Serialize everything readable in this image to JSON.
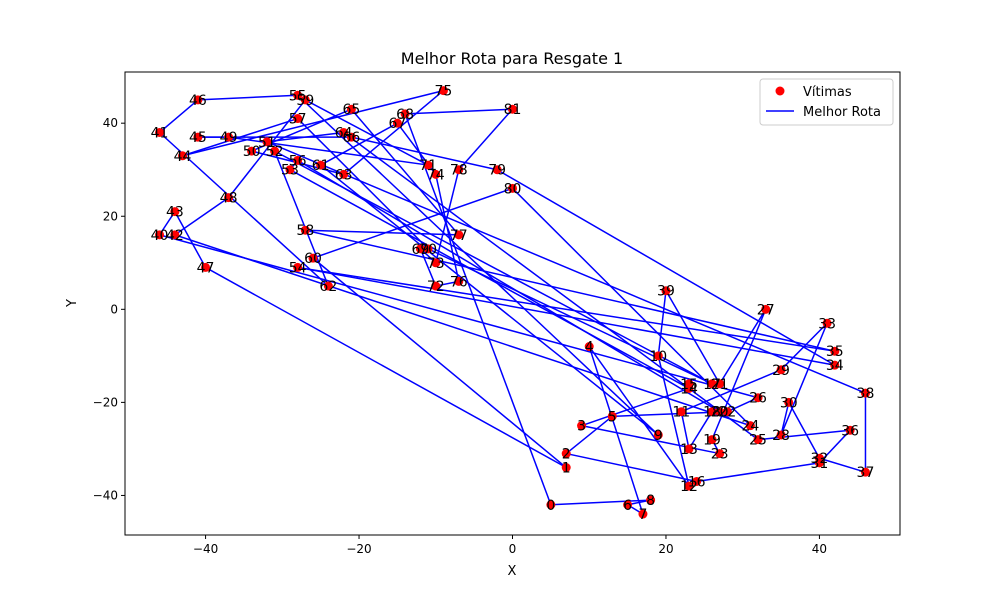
{
  "chart_data": {
    "type": "scatter",
    "title": "Melhor Rota para Resgate 1",
    "xlabel": "X",
    "ylabel": "Y",
    "xlim": [
      -50.5,
      50.5
    ],
    "ylim": [
      -48.5,
      51
    ],
    "xticks": [
      -40,
      -20,
      0,
      20,
      40
    ],
    "yticks": [
      -40,
      -20,
      0,
      20,
      40
    ],
    "grid": false,
    "legend_position": "top-right",
    "colors": {
      "points": "#ff0000",
      "route": "#0000ff",
      "labels": "#000000"
    },
    "series": [
      {
        "name": "Vítimas",
        "kind": "scatter"
      },
      {
        "name": "Melhor Rota",
        "kind": "line"
      }
    ],
    "points": [
      {
        "id": "0",
        "x": 5,
        "y": -42
      },
      {
        "id": "1",
        "x": 7,
        "y": -34
      },
      {
        "id": "2",
        "x": 7,
        "y": -31
      },
      {
        "id": "3",
        "x": 9,
        "y": -25
      },
      {
        "id": "4",
        "x": 10,
        "y": -8
      },
      {
        "id": "5",
        "x": 13,
        "y": -23
      },
      {
        "id": "6",
        "x": 15,
        "y": -42
      },
      {
        "id": "7",
        "x": 17,
        "y": -44
      },
      {
        "id": "8",
        "x": 18,
        "y": -41
      },
      {
        "id": "9",
        "x": 19,
        "y": -27
      },
      {
        "id": "10",
        "x": 19,
        "y": -10
      },
      {
        "id": "11",
        "x": 22,
        "y": -22
      },
      {
        "id": "12",
        "x": 23,
        "y": -38
      },
      {
        "id": "13",
        "x": 23,
        "y": -30
      },
      {
        "id": "14",
        "x": 23,
        "y": -17
      },
      {
        "id": "15",
        "x": 23,
        "y": -16
      },
      {
        "id": "16",
        "x": 24,
        "y": -37
      },
      {
        "id": "17",
        "x": 26,
        "y": -16
      },
      {
        "id": "18",
        "x": 26,
        "y": -22
      },
      {
        "id": "19",
        "x": 26,
        "y": -28
      },
      {
        "id": "20",
        "x": 27,
        "y": -22
      },
      {
        "id": "21",
        "x": 27,
        "y": -16
      },
      {
        "id": "22",
        "x": 28,
        "y": -22
      },
      {
        "id": "23",
        "x": 27,
        "y": -31
      },
      {
        "id": "24",
        "x": 31,
        "y": -25
      },
      {
        "id": "25",
        "x": 32,
        "y": -28
      },
      {
        "id": "26",
        "x": 32,
        "y": -19
      },
      {
        "id": "27",
        "x": 33,
        "y": 0
      },
      {
        "id": "28",
        "x": 35,
        "y": -27
      },
      {
        "id": "29",
        "x": 35,
        "y": -13
      },
      {
        "id": "30",
        "x": 36,
        "y": -20
      },
      {
        "id": "31",
        "x": 40,
        "y": -33
      },
      {
        "id": "32",
        "x": 40,
        "y": -32
      },
      {
        "id": "33",
        "x": 41,
        "y": -3
      },
      {
        "id": "34",
        "x": 42,
        "y": -12
      },
      {
        "id": "35",
        "x": 42,
        "y": -9
      },
      {
        "id": "36",
        "x": 44,
        "y": -26
      },
      {
        "id": "37",
        "x": 46,
        "y": -35
      },
      {
        "id": "38",
        "x": 46,
        "y": -18
      },
      {
        "id": "39",
        "x": 20,
        "y": 4
      },
      {
        "id": "40",
        "x": -46,
        "y": 16
      },
      {
        "id": "41",
        "x": -46,
        "y": 38
      },
      {
        "id": "42",
        "x": -44,
        "y": 16
      },
      {
        "id": "43",
        "x": -44,
        "y": 21
      },
      {
        "id": "44",
        "x": -43,
        "y": 33
      },
      {
        "id": "45",
        "x": -41,
        "y": 37
      },
      {
        "id": "46",
        "x": -41,
        "y": 45
      },
      {
        "id": "47",
        "x": -40,
        "y": 9
      },
      {
        "id": "48",
        "x": -37,
        "y": 24
      },
      {
        "id": "49",
        "x": -37,
        "y": 37
      },
      {
        "id": "50",
        "x": -34,
        "y": 34
      },
      {
        "id": "51",
        "x": -32,
        "y": 36
      },
      {
        "id": "52",
        "x": -31,
        "y": 34
      },
      {
        "id": "53",
        "x": -29,
        "y": 30
      },
      {
        "id": "54",
        "x": -28,
        "y": 9
      },
      {
        "id": "55",
        "x": -28,
        "y": 46
      },
      {
        "id": "56",
        "x": -28,
        "y": 32
      },
      {
        "id": "57",
        "x": -28,
        "y": 41
      },
      {
        "id": "58",
        "x": -27,
        "y": 17
      },
      {
        "id": "59",
        "x": -27,
        "y": 45
      },
      {
        "id": "60",
        "x": -26,
        "y": 11
      },
      {
        "id": "61",
        "x": -25,
        "y": 31
      },
      {
        "id": "62",
        "x": -24,
        "y": 5
      },
      {
        "id": "63",
        "x": -22,
        "y": 29
      },
      {
        "id": "64",
        "x": -22,
        "y": 38
      },
      {
        "id": "65",
        "x": -21,
        "y": 43
      },
      {
        "id": "66",
        "x": -21,
        "y": 37
      },
      {
        "id": "67",
        "x": -15,
        "y": 40
      },
      {
        "id": "68",
        "x": -14,
        "y": 42
      },
      {
        "id": "69",
        "x": -12,
        "y": 13
      },
      {
        "id": "70",
        "x": -11,
        "y": 13
      },
      {
        "id": "71",
        "x": -11,
        "y": 31
      },
      {
        "id": "72",
        "x": -10,
        "y": 5
      },
      {
        "id": "73",
        "x": -10,
        "y": 10
      },
      {
        "id": "74",
        "x": -10,
        "y": 29
      },
      {
        "id": "75",
        "x": -9,
        "y": 47
      },
      {
        "id": "76",
        "x": -7,
        "y": 6
      },
      {
        "id": "77",
        "x": -7,
        "y": 16
      },
      {
        "id": "78",
        "x": -7,
        "y": 30
      },
      {
        "id": "79",
        "x": -2,
        "y": 30
      },
      {
        "id": "80",
        "x": 0,
        "y": 26
      },
      {
        "id": "81",
        "x": 0,
        "y": 43
      }
    ],
    "route": [
      "0",
      "8",
      "6",
      "7",
      "4",
      "12",
      "10",
      "39",
      "21",
      "27",
      "19",
      "23",
      "3",
      "14",
      "53",
      "56",
      "20",
      "18",
      "13",
      "11",
      "29",
      "33",
      "28",
      "30",
      "32",
      "37",
      "38",
      "51",
      "64",
      "25",
      "36",
      "31",
      "16",
      "2",
      "5",
      "22",
      "26",
      "40",
      "43",
      "47",
      "1",
      "60",
      "80",
      "24",
      "42",
      "48",
      "59",
      "71",
      "49",
      "45",
      "66",
      "79",
      "34",
      "54",
      "35",
      "58",
      "77",
      "65",
      "50",
      "63",
      "75",
      "44",
      "57",
      "70",
      "17",
      "52",
      "62",
      "41",
      "46",
      "55",
      "9",
      "61",
      "67",
      "74",
      "76",
      "72",
      "69",
      "73",
      "78",
      "81",
      "68",
      "0"
    ]
  }
}
